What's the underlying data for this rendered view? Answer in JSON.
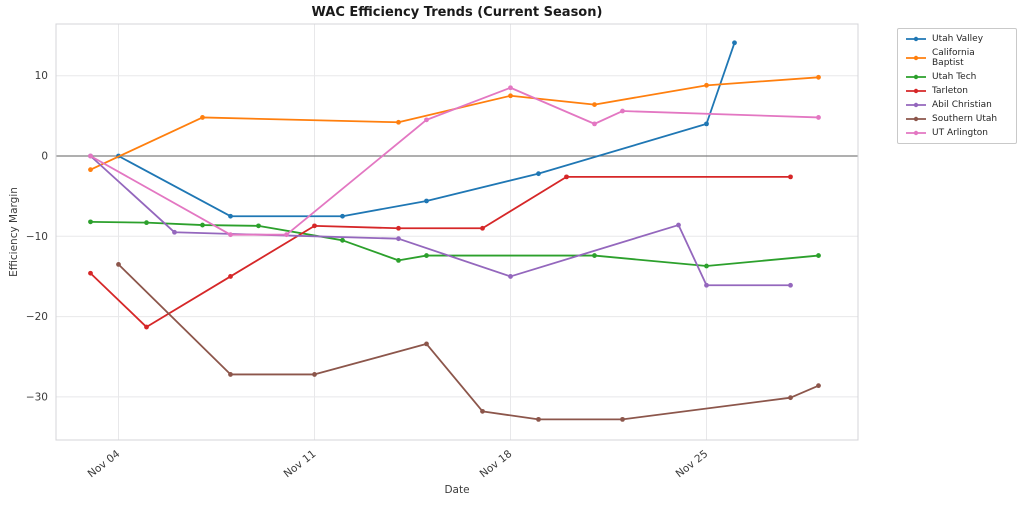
{
  "title": "WAC Efficiency Trends (Current Season)",
  "axes": {
    "xlabel": "Date",
    "ylabel": "Efficiency Margin",
    "x_ticks": [
      {
        "day": 4,
        "label": "Nov 04"
      },
      {
        "day": 11,
        "label": "Nov 11"
      },
      {
        "day": 18,
        "label": "Nov 18"
      },
      {
        "day": 25,
        "label": "Nov 25"
      }
    ],
    "y_ticks": [
      {
        "value": 10,
        "label": "10"
      },
      {
        "value": 0,
        "label": "0"
      },
      {
        "value": -10,
        "label": "−10"
      },
      {
        "value": -20,
        "label": "−20"
      },
      {
        "value": -30,
        "label": "−30"
      }
    ]
  },
  "legend": {
    "position": "right-outside",
    "entries": [
      "Utah Valley",
      "California Baptist",
      "Utah Tech",
      "Tarleton",
      "Abil Christian",
      "Southern Utah",
      "UT Arlington"
    ]
  },
  "chart_data": {
    "type": "line",
    "title": "WAC Efficiency Trends (Current Season)",
    "xlabel": "Date",
    "ylabel": "Efficiency Margin",
    "x_tick_labels": [
      "Nov 04",
      "Nov 11",
      "Nov 18",
      "Nov 25"
    ],
    "ylim": [
      -35.4,
      16.4
    ],
    "xlim_days_november": [
      1.8,
      30.4
    ],
    "grid": true,
    "zero_line": true,
    "zero_line_color": "#7f7f7f",
    "marker": "circle",
    "legend_position": "right-outside",
    "series": [
      {
        "name": "Utah Valley",
        "color": "#1f77b4",
        "points": [
          {
            "date": "Nov 04",
            "day": 4,
            "value": 0.0
          },
          {
            "date": "Nov 08",
            "day": 8,
            "value": -7.5
          },
          {
            "date": "Nov 12",
            "day": 12,
            "value": -7.5
          },
          {
            "date": "Nov 15",
            "day": 15,
            "value": -5.6
          },
          {
            "date": "Nov 19",
            "day": 19,
            "value": -2.2
          },
          {
            "date": "Nov 25",
            "day": 25,
            "value": 4.0
          },
          {
            "date": "Nov 26",
            "day": 26,
            "value": 14.1
          }
        ]
      },
      {
        "name": "California Baptist",
        "color": "#ff7f0e",
        "points": [
          {
            "date": "Nov 03",
            "day": 3,
            "value": -1.7
          },
          {
            "date": "Nov 07",
            "day": 7,
            "value": 4.8
          },
          {
            "date": "Nov 14",
            "day": 14,
            "value": 4.2
          },
          {
            "date": "Nov 18",
            "day": 18,
            "value": 7.5
          },
          {
            "date": "Nov 21",
            "day": 21,
            "value": 6.4
          },
          {
            "date": "Nov 25",
            "day": 25,
            "value": 8.8
          },
          {
            "date": "Nov 29",
            "day": 29,
            "value": 9.8
          }
        ]
      },
      {
        "name": "Utah Tech",
        "color": "#2ca02c",
        "points": [
          {
            "date": "Nov 03",
            "day": 3,
            "value": -8.2
          },
          {
            "date": "Nov 05",
            "day": 5,
            "value": -8.3
          },
          {
            "date": "Nov 07",
            "day": 7,
            "value": -8.6
          },
          {
            "date": "Nov 09",
            "day": 9,
            "value": -8.7
          },
          {
            "date": "Nov 12",
            "day": 12,
            "value": -10.5
          },
          {
            "date": "Nov 14",
            "day": 14,
            "value": -13.0
          },
          {
            "date": "Nov 15",
            "day": 15,
            "value": -12.4
          },
          {
            "date": "Nov 21",
            "day": 21,
            "value": -12.4
          },
          {
            "date": "Nov 25",
            "day": 25,
            "value": -13.7
          },
          {
            "date": "Nov 29",
            "day": 29,
            "value": -12.4
          }
        ]
      },
      {
        "name": "Tarleton",
        "color": "#d62728",
        "points": [
          {
            "date": "Nov 03",
            "day": 3,
            "value": -14.6
          },
          {
            "date": "Nov 05",
            "day": 5,
            "value": -21.3
          },
          {
            "date": "Nov 08",
            "day": 8,
            "value": -15.0
          },
          {
            "date": "Nov 11",
            "day": 11,
            "value": -8.7
          },
          {
            "date": "Nov 14",
            "day": 14,
            "value": -9.0
          },
          {
            "date": "Nov 17",
            "day": 17,
            "value": -9.0
          },
          {
            "date": "Nov 20",
            "day": 20,
            "value": -2.6
          },
          {
            "date": "Nov 28",
            "day": 28,
            "value": -2.6
          }
        ]
      },
      {
        "name": "Abil Christian",
        "color": "#9467bd",
        "points": [
          {
            "date": "Nov 03",
            "day": 3,
            "value": 0.0
          },
          {
            "date": "Nov 06",
            "day": 6,
            "value": -9.5
          },
          {
            "date": "Nov 14",
            "day": 14,
            "value": -10.3
          },
          {
            "date": "Nov 18",
            "day": 18,
            "value": -15.0
          },
          {
            "date": "Nov 24",
            "day": 24,
            "value": -8.6
          },
          {
            "date": "Nov 25",
            "day": 25,
            "value": -16.1
          },
          {
            "date": "Nov 28",
            "day": 28,
            "value": -16.1
          }
        ]
      },
      {
        "name": "Southern Utah",
        "color": "#8c564b",
        "points": [
          {
            "date": "Nov 04",
            "day": 4,
            "value": -13.5
          },
          {
            "date": "Nov 08",
            "day": 8,
            "value": -27.2
          },
          {
            "date": "Nov 11",
            "day": 11,
            "value": -27.2
          },
          {
            "date": "Nov 15",
            "day": 15,
            "value": -23.4
          },
          {
            "date": "Nov 17",
            "day": 17,
            "value": -31.8
          },
          {
            "date": "Nov 19",
            "day": 19,
            "value": -32.8
          },
          {
            "date": "Nov 22",
            "day": 22,
            "value": -32.8
          },
          {
            "date": "Nov 28",
            "day": 28,
            "value": -30.1
          },
          {
            "date": "Nov 29",
            "day": 29,
            "value": -28.6
          }
        ]
      },
      {
        "name": "UT Arlington",
        "color": "#e377c2",
        "points": [
          {
            "date": "Nov 03",
            "day": 3,
            "value": 0.0
          },
          {
            "date": "Nov 08",
            "day": 8,
            "value": -9.8
          },
          {
            "date": "Nov 10",
            "day": 10,
            "value": -9.8
          },
          {
            "date": "Nov 15",
            "day": 15,
            "value": 4.5
          },
          {
            "date": "Nov 18",
            "day": 18,
            "value": 8.5
          },
          {
            "date": "Nov 21",
            "day": 21,
            "value": 4.0
          },
          {
            "date": "Nov 22",
            "day": 22,
            "value": 5.6
          },
          {
            "date": "Nov 29",
            "day": 29,
            "value": 4.8
          }
        ]
      }
    ]
  }
}
